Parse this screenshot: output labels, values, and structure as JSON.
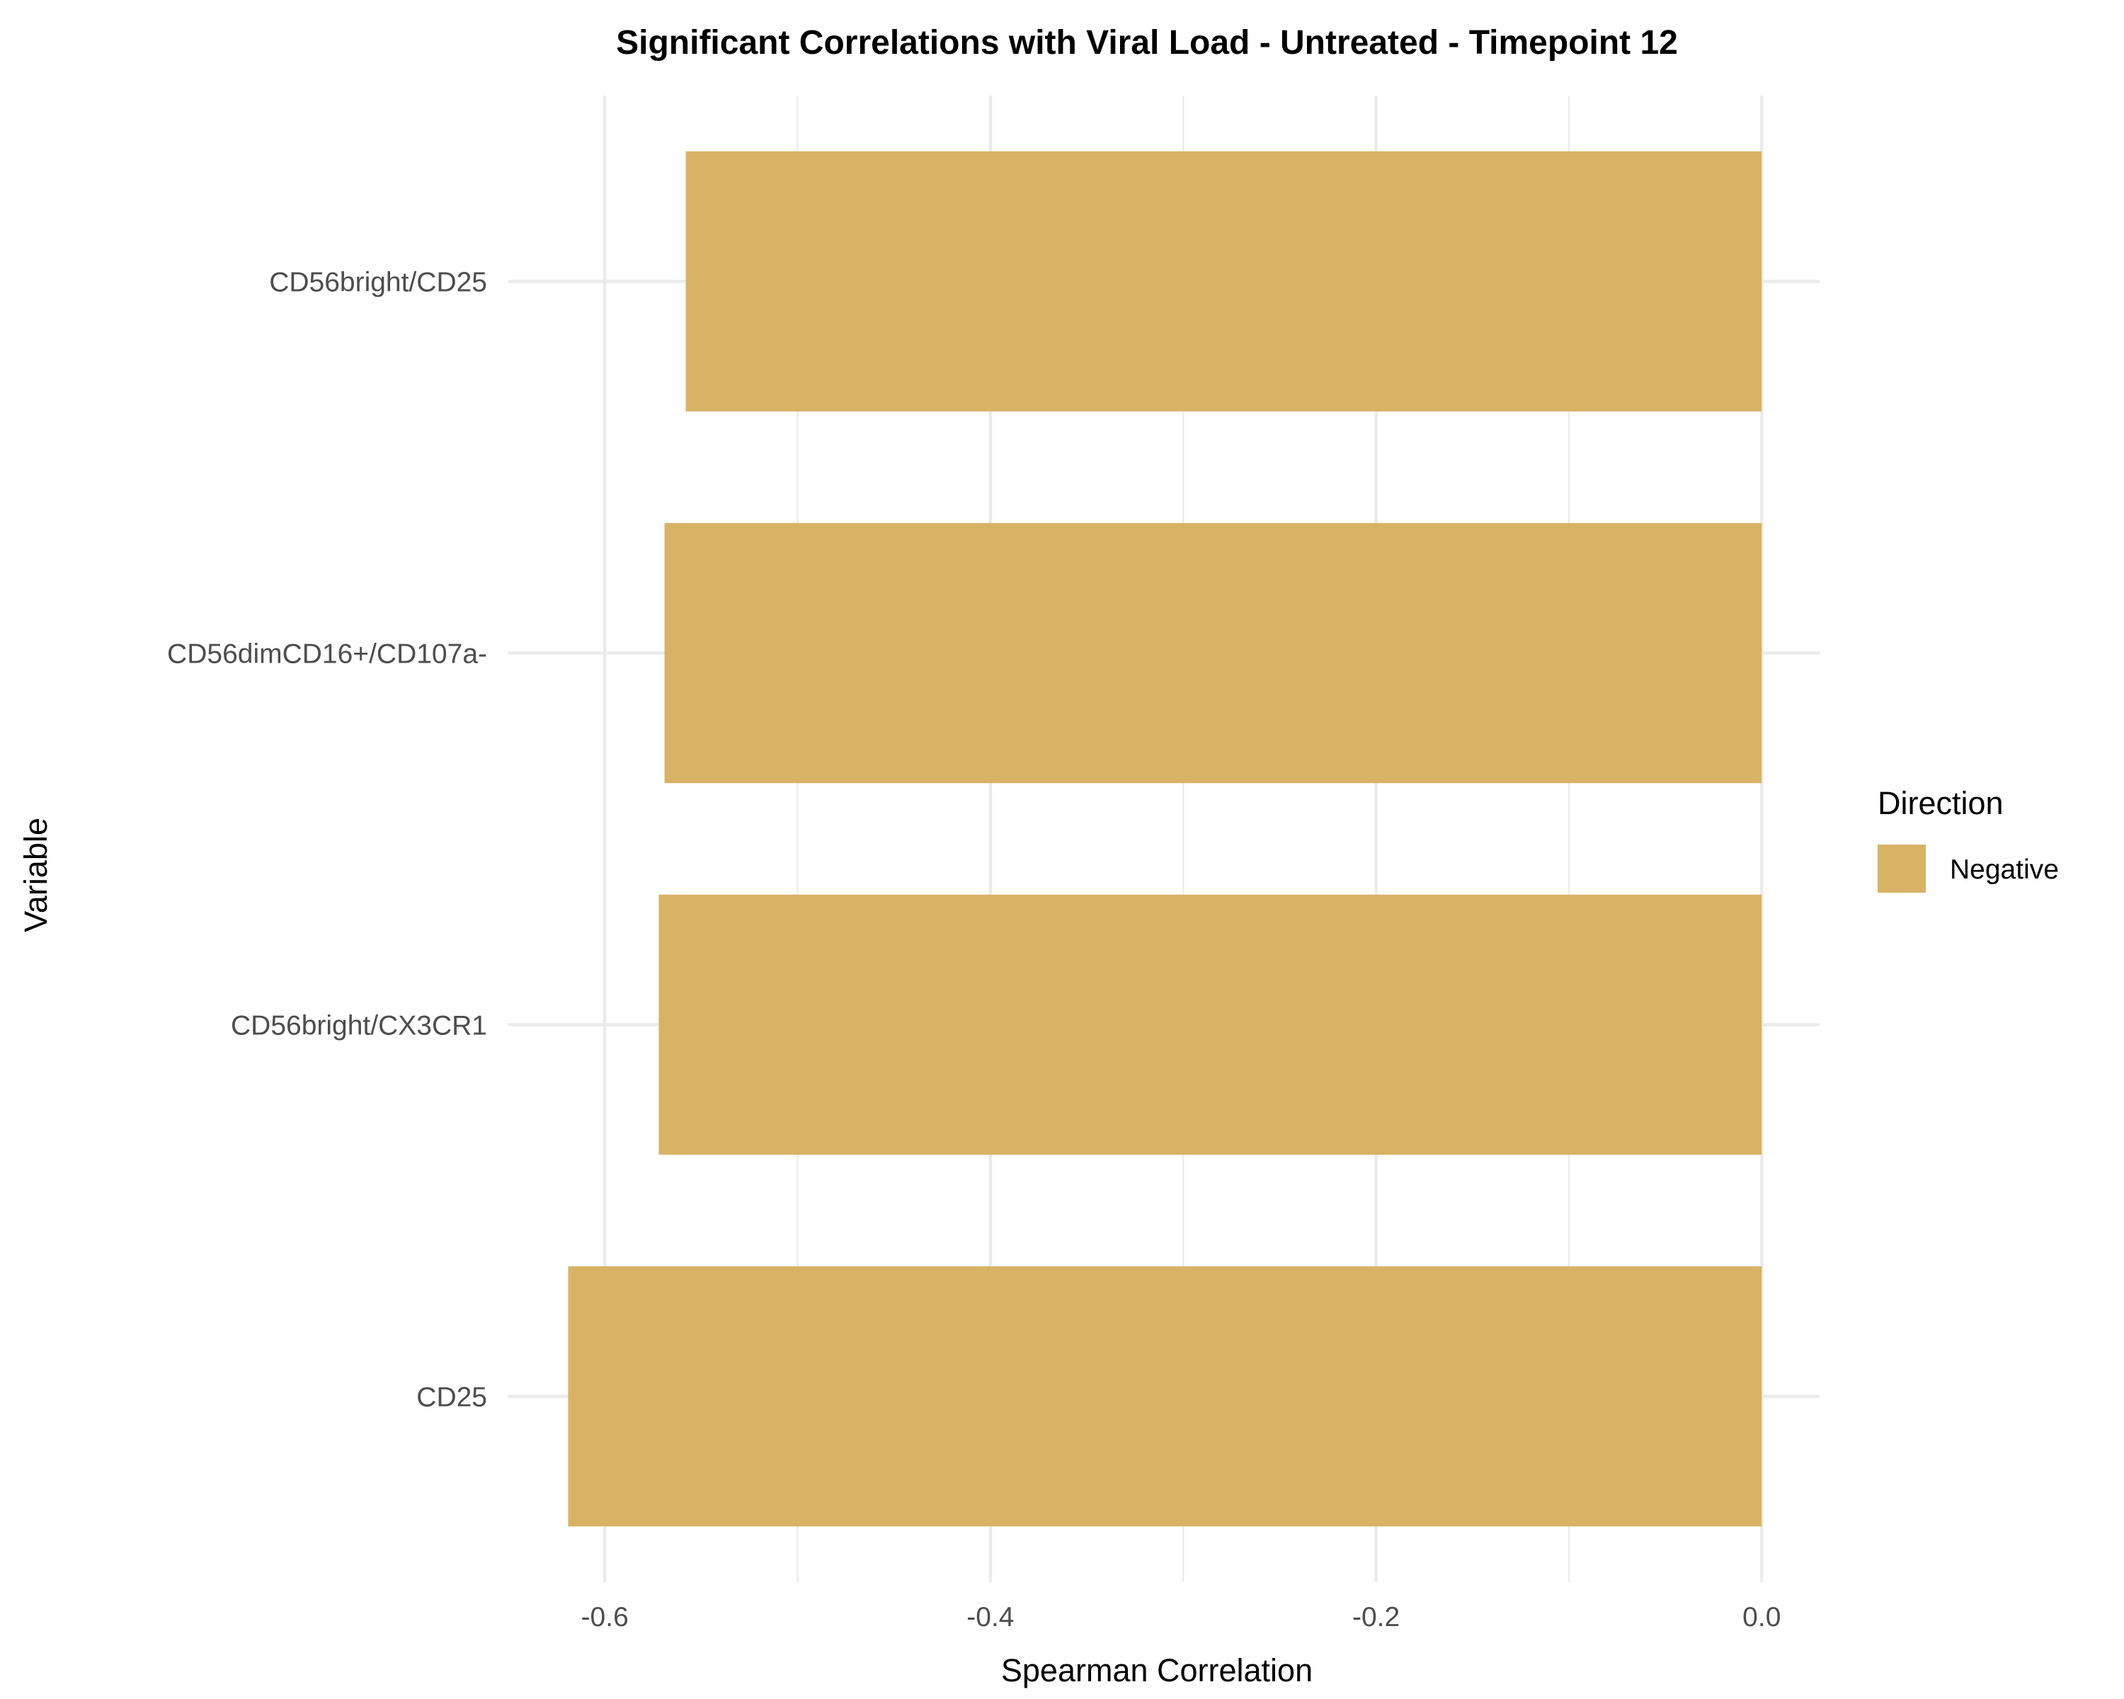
{
  "chart_data": {
    "type": "bar",
    "orientation": "horizontal",
    "title": "Significant Correlations with Viral Load - Untreated - Timepoint 12",
    "xlabel": "Spearman Correlation",
    "ylabel": "Variable",
    "categories": [
      "CD56bright/CD25",
      "CD56dimCD16+/CD107a-",
      "CD56bright/CX3CR1",
      "CD25"
    ],
    "values": [
      -0.558,
      -0.569,
      -0.572,
      -0.619
    ],
    "xlim": [
      -0.65,
      0.03
    ],
    "xticks": [
      -0.6,
      -0.4,
      -0.2,
      0.0
    ],
    "xtick_labels": [
      "-0.6",
      "-0.4",
      "-0.2",
      "0.0"
    ],
    "grid": true,
    "legend": {
      "title": "Direction",
      "position": "right",
      "entries": [
        {
          "label": "Negative",
          "color": "#d8b365"
        }
      ]
    },
    "bar_color": "#d8b365"
  }
}
